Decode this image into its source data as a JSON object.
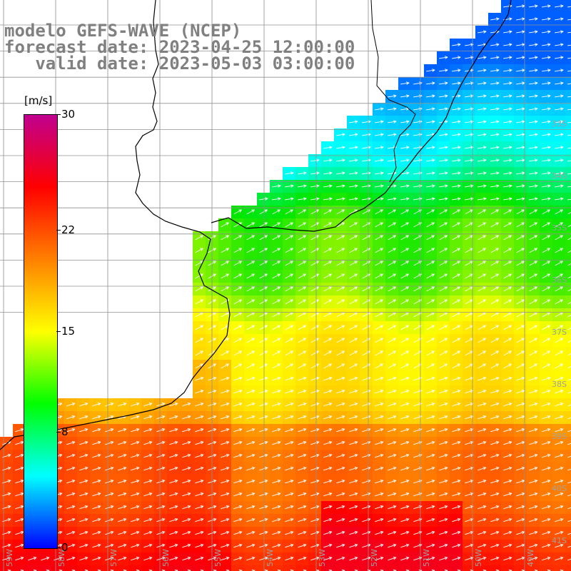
{
  "title": {
    "line1": "modelo GEFS-WAVE (NCEP)",
    "line2": "forecast date: 2023-04-25 12:00:00",
    "line3": "   valid date: 2023-05-03 03:00:00"
  },
  "colorbar": {
    "unit": "[m/s]",
    "min": 0,
    "max": 30,
    "ticks": [
      "30",
      "22",
      "15",
      "8",
      "0"
    ],
    "tick_values": [
      30,
      22,
      15,
      8,
      0
    ],
    "colors": [
      "#0000ff",
      "#00ffff",
      "#00ff00",
      "#ffff00",
      "#ff8000",
      "#ff0000",
      "#c0008f"
    ]
  },
  "lat_labels": [
    "33S",
    "34S",
    "35S",
    "36S",
    "37S",
    "38S",
    "39S",
    "40S",
    "41S"
  ],
  "lon_labels": [
    "59W",
    "58W",
    "57W",
    "56W",
    "55W",
    "54W",
    "53W",
    "52W",
    "51W",
    "50W",
    "49W"
  ],
  "colors": {
    "coastline": "#000000",
    "grid": "#909090",
    "arrows": "#ffffff",
    "label": "#808080"
  }
}
